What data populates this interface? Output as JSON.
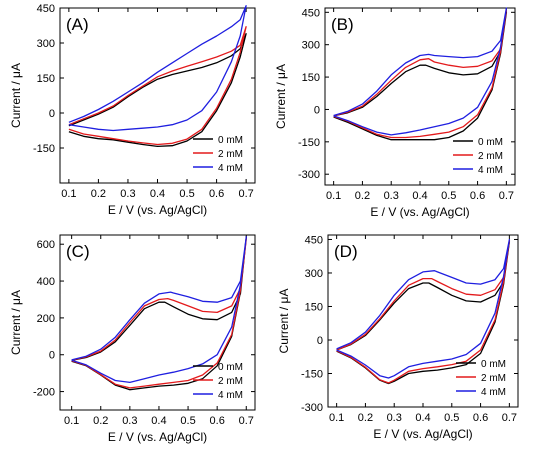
{
  "figure": {
    "panels": [
      "(A)",
      "(B)",
      "(C)",
      "(D)"
    ]
  },
  "chart_data": [
    {
      "type": "line",
      "panel_label": "(A)",
      "xlabel": "E / V (vs. Ag/AgCl)",
      "ylabel": "Current / μA",
      "xlim": [
        0.07,
        0.73
      ],
      "ylim": [
        -300,
        450
      ],
      "xticks": [
        "0.1",
        "0.2",
        "0.3",
        "0.4",
        "0.5",
        "0.6",
        "0.7"
      ],
      "xtick_values": [
        0.1,
        0.2,
        0.3,
        0.4,
        0.5,
        0.6,
        0.7
      ],
      "yticks": [
        "450",
        "300",
        "150",
        "0",
        "-150"
      ],
      "ytick_values": [
        450,
        300,
        150,
        0,
        -150
      ],
      "legend": {
        "position": "bottom-right",
        "entries": [
          "0 mM",
          "2 mM",
          "4 mM"
        ]
      },
      "series": [
        {
          "name": "0 mM",
          "color": "#000000",
          "x": [
            0.1,
            0.15,
            0.2,
            0.25,
            0.3,
            0.35,
            0.4,
            0.45,
            0.5,
            0.55,
            0.6,
            0.65,
            0.68,
            0.7,
            0.7,
            0.68,
            0.65,
            0.6,
            0.55,
            0.5,
            0.45,
            0.4,
            0.35,
            0.3,
            0.25,
            0.2,
            0.15,
            0.1
          ],
          "y": [
            -55,
            -30,
            -5,
            25,
            70,
            110,
            145,
            165,
            180,
            195,
            215,
            245,
            275,
            340,
            340,
            240,
            130,
            10,
            -80,
            -120,
            -140,
            -143,
            -135,
            -125,
            -115,
            -110,
            -100,
            -80
          ]
        },
        {
          "name": "2 mM",
          "color": "#e31a1c",
          "x": [
            0.1,
            0.15,
            0.2,
            0.25,
            0.3,
            0.35,
            0.4,
            0.45,
            0.5,
            0.55,
            0.6,
            0.65,
            0.68,
            0.7,
            0.7,
            0.68,
            0.65,
            0.6,
            0.55,
            0.5,
            0.45,
            0.4,
            0.35,
            0.3,
            0.25,
            0.2,
            0.15,
            0.1
          ],
          "y": [
            -50,
            -25,
            0,
            30,
            75,
            115,
            155,
            180,
            200,
            220,
            240,
            265,
            290,
            370,
            370,
            260,
            145,
            20,
            -70,
            -112,
            -130,
            -135,
            -128,
            -120,
            -110,
            -100,
            -90,
            -70
          ]
        },
        {
          "name": "4 mM",
          "color": "#1f1fe0",
          "x": [
            0.1,
            0.15,
            0.2,
            0.25,
            0.3,
            0.35,
            0.4,
            0.45,
            0.5,
            0.55,
            0.6,
            0.65,
            0.68,
            0.7,
            0.7,
            0.68,
            0.65,
            0.6,
            0.55,
            0.5,
            0.45,
            0.4,
            0.35,
            0.3,
            0.25,
            0.2,
            0.15,
            0.1
          ],
          "y": [
            -40,
            -15,
            15,
            50,
            90,
            130,
            175,
            215,
            255,
            295,
            330,
            370,
            400,
            460,
            460,
            330,
            220,
            90,
            10,
            -30,
            -50,
            -60,
            -65,
            -70,
            -75,
            -70,
            -60,
            -50
          ]
        }
      ]
    },
    {
      "type": "line",
      "panel_label": "(B)",
      "xlabel": "E / V (vs. Ag/AgCl)",
      "ylabel": "Current / μA",
      "xlim": [
        0.07,
        0.73
      ],
      "ylim": [
        -350,
        470
      ],
      "xticks": [
        "0.1",
        "0.2",
        "0.3",
        "0.4",
        "0.5",
        "0.6",
        "0.7"
      ],
      "xtick_values": [
        0.1,
        0.2,
        0.3,
        0.4,
        0.5,
        0.6,
        0.7
      ],
      "yticks": [
        "450",
        "300",
        "150",
        "0",
        "-150",
        "-300"
      ],
      "ytick_values": [
        450,
        300,
        150,
        0,
        -150,
        -300
      ],
      "legend": {
        "position": "bottom-right",
        "entries": [
          "0 mM",
          "2 mM",
          "4 mM"
        ]
      },
      "series": [
        {
          "name": "0 mM",
          "color": "#000000",
          "x": [
            0.1,
            0.15,
            0.2,
            0.25,
            0.3,
            0.35,
            0.4,
            0.42,
            0.45,
            0.5,
            0.55,
            0.6,
            0.65,
            0.68,
            0.7,
            0.7,
            0.68,
            0.65,
            0.6,
            0.55,
            0.5,
            0.45,
            0.4,
            0.35,
            0.3,
            0.25,
            0.2,
            0.15,
            0.1
          ],
          "y": [
            -30,
            -15,
            10,
            60,
            120,
            175,
            205,
            205,
            190,
            170,
            160,
            165,
            200,
            270,
            450,
            450,
            260,
            90,
            -40,
            -100,
            -130,
            -140,
            -140,
            -140,
            -140,
            -120,
            -90,
            -60,
            -35
          ]
        },
        {
          "name": "2 mM",
          "color": "#e31a1c",
          "x": [
            0.1,
            0.15,
            0.2,
            0.25,
            0.3,
            0.35,
            0.4,
            0.43,
            0.45,
            0.5,
            0.55,
            0.6,
            0.65,
            0.68,
            0.7,
            0.7,
            0.68,
            0.65,
            0.6,
            0.55,
            0.5,
            0.45,
            0.4,
            0.35,
            0.3,
            0.25,
            0.2,
            0.15,
            0.1
          ],
          "y": [
            -30,
            -12,
            15,
            70,
            135,
            195,
            230,
            235,
            220,
            205,
            195,
            200,
            225,
            280,
            460,
            460,
            270,
            100,
            -25,
            -80,
            -105,
            -115,
            -125,
            -130,
            -130,
            -115,
            -85,
            -55,
            -32
          ]
        },
        {
          "name": "4 mM",
          "color": "#1f1fe0",
          "x": [
            0.1,
            0.15,
            0.2,
            0.25,
            0.3,
            0.35,
            0.4,
            0.43,
            0.45,
            0.5,
            0.55,
            0.6,
            0.65,
            0.68,
            0.7,
            0.7,
            0.68,
            0.65,
            0.6,
            0.55,
            0.5,
            0.45,
            0.4,
            0.35,
            0.3,
            0.25,
            0.2,
            0.15,
            0.1
          ],
          "y": [
            -28,
            -8,
            25,
            85,
            160,
            215,
            250,
            255,
            250,
            245,
            240,
            245,
            270,
            320,
            470,
            470,
            290,
            130,
            10,
            -40,
            -65,
            -80,
            -95,
            -108,
            -118,
            -105,
            -80,
            -52,
            -30
          ]
        }
      ]
    },
    {
      "type": "line",
      "panel_label": "(C)",
      "xlabel": "E / V (vs. Ag/AgCl)",
      "ylabel": "Current / μA",
      "xlim": [
        0.06,
        0.73
      ],
      "ylim": [
        -300,
        650
      ],
      "xticks": [
        "0.1",
        "0.2",
        "0.3",
        "0.4",
        "0.5",
        "0.6",
        "0.7"
      ],
      "xtick_values": [
        0.1,
        0.2,
        0.3,
        0.4,
        0.5,
        0.6,
        0.7
      ],
      "yticks": [
        "600",
        "400",
        "200",
        "0",
        "-200"
      ],
      "ytick_values": [
        600,
        400,
        200,
        0,
        -200
      ],
      "legend": {
        "position": "bottom-right",
        "entries": [
          "0 mM",
          "2 mM",
          "4 mM"
        ]
      },
      "series": [
        {
          "name": "0 mM",
          "color": "#000000",
          "x": [
            0.1,
            0.15,
            0.2,
            0.25,
            0.3,
            0.35,
            0.4,
            0.42,
            0.45,
            0.5,
            0.55,
            0.6,
            0.65,
            0.68,
            0.7,
            0.7,
            0.68,
            0.65,
            0.6,
            0.55,
            0.5,
            0.45,
            0.4,
            0.35,
            0.3,
            0.25,
            0.2,
            0.15,
            0.1
          ],
          "y": [
            -30,
            -15,
            15,
            70,
            160,
            250,
            285,
            285,
            260,
            220,
            195,
            190,
            230,
            330,
            640,
            640,
            340,
            100,
            -60,
            -130,
            -155,
            -165,
            -170,
            -180,
            -190,
            -165,
            -110,
            -60,
            -35
          ]
        },
        {
          "name": "2 mM",
          "color": "#e31a1c",
          "x": [
            0.1,
            0.15,
            0.2,
            0.25,
            0.3,
            0.35,
            0.4,
            0.43,
            0.45,
            0.5,
            0.55,
            0.6,
            0.65,
            0.68,
            0.7,
            0.7,
            0.68,
            0.65,
            0.6,
            0.55,
            0.5,
            0.45,
            0.4,
            0.35,
            0.3,
            0.25,
            0.2,
            0.15,
            0.1
          ],
          "y": [
            -30,
            -12,
            20,
            80,
            175,
            265,
            300,
            305,
            295,
            265,
            235,
            230,
            265,
            360,
            630,
            630,
            350,
            110,
            -45,
            -110,
            -140,
            -150,
            -160,
            -170,
            -180,
            -160,
            -108,
            -58,
            -33
          ]
        },
        {
          "name": "4 mM",
          "color": "#1f1fe0",
          "x": [
            0.1,
            0.15,
            0.2,
            0.25,
            0.3,
            0.35,
            0.4,
            0.44,
            0.45,
            0.5,
            0.55,
            0.6,
            0.65,
            0.68,
            0.7,
            0.7,
            0.68,
            0.65,
            0.6,
            0.55,
            0.5,
            0.45,
            0.4,
            0.35,
            0.3,
            0.25,
            0.2,
            0.15,
            0.1
          ],
          "y": [
            -28,
            -8,
            30,
            95,
            190,
            280,
            330,
            340,
            335,
            315,
            290,
            285,
            310,
            400,
            640,
            640,
            380,
            150,
            0,
            -50,
            -75,
            -95,
            -110,
            -130,
            -150,
            -140,
            -100,
            -55,
            -30
          ]
        }
      ]
    },
    {
      "type": "line",
      "panel_label": "(D)",
      "xlabel": "E / V (vs. Ag/AgCl)",
      "ylabel": "Current / μA",
      "xlim": [
        0.07,
        0.73
      ],
      "ylim": [
        -300,
        470
      ],
      "xticks": [
        "0.1",
        "0.2",
        "0.3",
        "0.4",
        "0.5",
        "0.6",
        "0.7"
      ],
      "xtick_values": [
        0.1,
        0.2,
        0.3,
        0.4,
        0.5,
        0.6,
        0.7
      ],
      "yticks": [
        "450",
        "300",
        "150",
        "0",
        "-150",
        "-300"
      ],
      "ytick_values": [
        450,
        300,
        150,
        0,
        -150,
        -300
      ],
      "legend": {
        "position": "bottom-right",
        "entries": [
          "0 mM",
          "2 mM",
          "4 mM"
        ]
      },
      "series": [
        {
          "name": "0 mM",
          "color": "#000000",
          "x": [
            0.1,
            0.15,
            0.2,
            0.25,
            0.3,
            0.35,
            0.4,
            0.42,
            0.45,
            0.5,
            0.55,
            0.6,
            0.65,
            0.68,
            0.7,
            0.7,
            0.68,
            0.65,
            0.6,
            0.55,
            0.5,
            0.45,
            0.4,
            0.35,
            0.3,
            0.28,
            0.25,
            0.2,
            0.15,
            0.1
          ],
          "y": [
            -45,
            -20,
            20,
            90,
            165,
            230,
            255,
            255,
            235,
            200,
            175,
            170,
            200,
            260,
            440,
            440,
            250,
            80,
            -60,
            -110,
            -125,
            -135,
            -140,
            -150,
            -185,
            -195,
            -180,
            -125,
            -80,
            -50
          ]
        },
        {
          "name": "2 mM",
          "color": "#e31a1c",
          "x": [
            0.1,
            0.15,
            0.2,
            0.25,
            0.3,
            0.35,
            0.4,
            0.43,
            0.45,
            0.5,
            0.55,
            0.6,
            0.65,
            0.68,
            0.7,
            0.7,
            0.68,
            0.65,
            0.6,
            0.55,
            0.5,
            0.45,
            0.4,
            0.35,
            0.3,
            0.28,
            0.25,
            0.2,
            0.15,
            0.1
          ],
          "y": [
            -45,
            -18,
            25,
            95,
            175,
            245,
            275,
            275,
            262,
            230,
            205,
            200,
            225,
            280,
            445,
            445,
            260,
            90,
            -45,
            -95,
            -110,
            -120,
            -128,
            -140,
            -180,
            -192,
            -178,
            -122,
            -78,
            -48
          ]
        },
        {
          "name": "4 mM",
          "color": "#1f1fe0",
          "x": [
            0.1,
            0.15,
            0.2,
            0.25,
            0.3,
            0.35,
            0.4,
            0.44,
            0.45,
            0.5,
            0.55,
            0.6,
            0.65,
            0.68,
            0.7,
            0.7,
            0.68,
            0.65,
            0.6,
            0.55,
            0.5,
            0.45,
            0.4,
            0.35,
            0.3,
            0.28,
            0.25,
            0.2,
            0.15,
            0.1
          ],
          "y": [
            -40,
            -12,
            35,
            110,
            200,
            270,
            305,
            310,
            305,
            280,
            255,
            250,
            270,
            320,
            450,
            450,
            285,
            120,
            -15,
            -65,
            -85,
            -95,
            -105,
            -120,
            -160,
            -170,
            -160,
            -112,
            -72,
            -45
          ]
        }
      ]
    }
  ]
}
